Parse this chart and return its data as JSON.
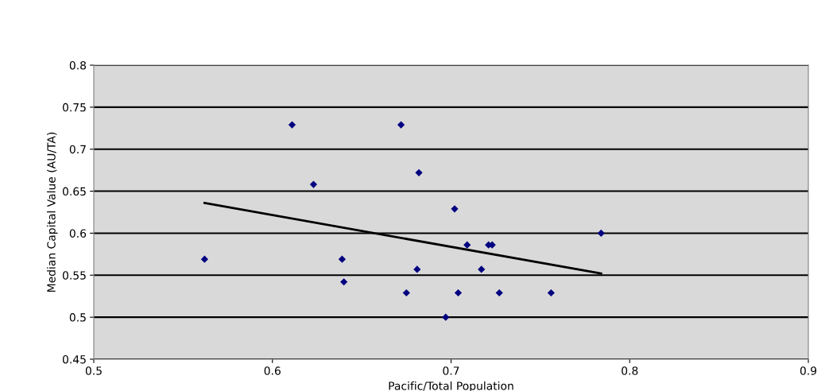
{
  "chart_data": {
    "type": "scatter",
    "xlabel": "Pacific/Total Population",
    "ylabel": "Median Capital Value (AU/TA)",
    "xlim": [
      0.5,
      0.9
    ],
    "xticks": [
      0.5,
      0.6,
      0.7,
      0.8,
      0.9
    ],
    "ylim": [
      0.45,
      0.8
    ],
    "yticks": [
      0.45,
      0.5,
      0.55,
      0.6,
      0.65,
      0.7,
      0.75,
      0.8
    ],
    "grid": "y",
    "marker": "diamond",
    "series": [
      {
        "color": "#000080",
        "x": [
          0.562,
          0.611,
          0.623,
          0.639,
          0.64,
          0.672,
          0.675,
          0.682,
          0.681,
          0.697,
          0.702,
          0.704,
          0.709,
          0.717,
          0.721,
          0.723,
          0.727,
          0.756,
          0.784
        ],
        "values": [
          0.569,
          0.729,
          0.658,
          0.569,
          0.542,
          0.729,
          0.529,
          0.672,
          0.557,
          0.5,
          0.629,
          0.529,
          0.586,
          0.557,
          0.586,
          0.586,
          0.529,
          0.529,
          0.6
        ]
      },
      {
        "type": "line",
        "color": "#000000",
        "marker": "none",
        "x": [
          0.562,
          0.784
        ],
        "values": [
          0.636,
          0.552
        ]
      }
    ]
  }
}
